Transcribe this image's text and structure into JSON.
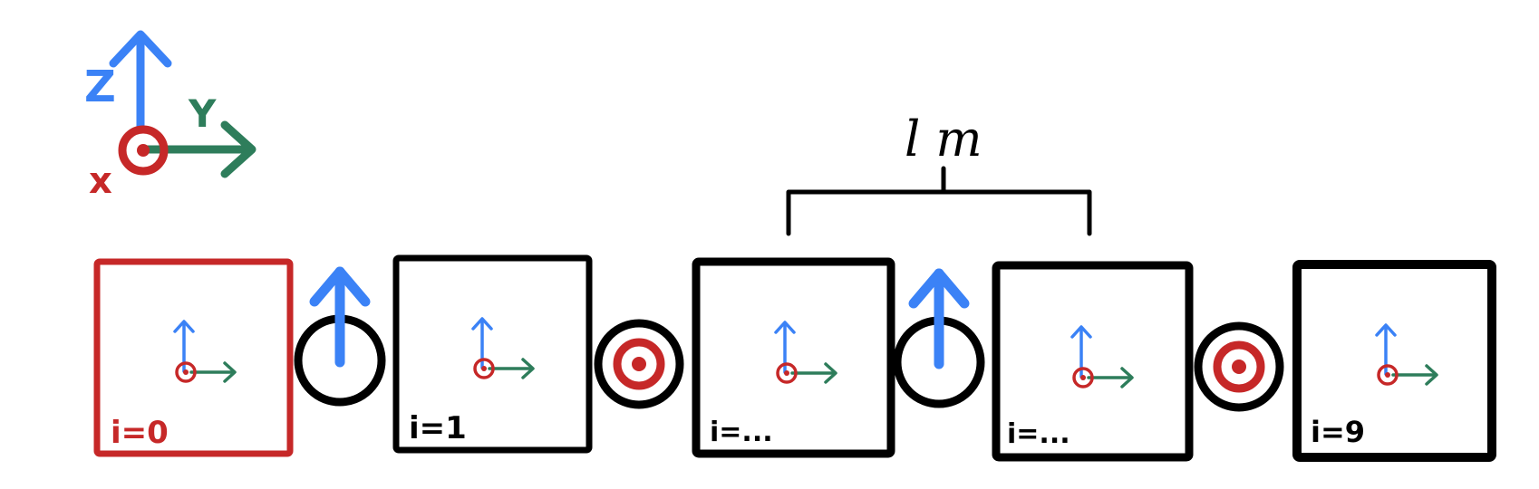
{
  "axes": {
    "z_label": "Z",
    "y_label": "Y",
    "x_label": "x"
  },
  "dimension": {
    "label": "l m"
  },
  "links": [
    {
      "label": "i=0",
      "highlighted": true
    },
    {
      "label": "i=1",
      "highlighted": false
    },
    {
      "label": "i=...",
      "highlighted": false
    },
    {
      "label": "i=...",
      "highlighted": false
    },
    {
      "label": "i=9",
      "highlighted": false
    }
  ],
  "joints": [
    {
      "axis": "z"
    },
    {
      "axis": "x"
    },
    {
      "axis": "z"
    },
    {
      "axis": "x"
    }
  ],
  "colors": {
    "z_axis": "#3b82f6",
    "y_axis": "#2e7d5b",
    "x_axis": "#c62828",
    "link_outline": "#000000",
    "highlight_outline": "#c62828"
  }
}
